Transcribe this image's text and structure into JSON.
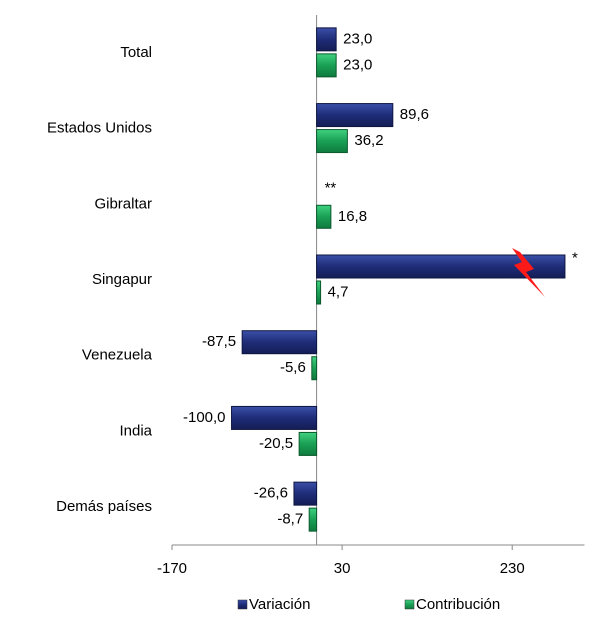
{
  "chart_data": {
    "type": "bar",
    "orientation": "horizontal",
    "categories": [
      "Total",
      "Estados Unidos",
      "Gibraltar",
      "Singapur",
      "Venezuela",
      "India",
      "Demás países"
    ],
    "series": [
      {
        "name": "Variación",
        "color": "#1f2d78",
        "values": [
          23.0,
          89.6,
          null,
          292,
          -87.5,
          -100.0,
          -26.6
        ],
        "value_labels": [
          "23,0",
          "89,6",
          "**",
          "*",
          "-87,5",
          "-100,0",
          "-26,6"
        ]
      },
      {
        "name": "Contribución",
        "color": "#1aa055",
        "values": [
          23.0,
          36.2,
          16.8,
          4.7,
          -5.6,
          -20.5,
          -8.7
        ],
        "value_labels": [
          "23,0",
          "36,2",
          "16,8",
          "4,7",
          "-5,6",
          "-20,5",
          "-8,7"
        ]
      }
    ],
    "xlim": [
      -170,
      315
    ],
    "xticks": [
      -170,
      30,
      230
    ],
    "legend": "bottom"
  }
}
